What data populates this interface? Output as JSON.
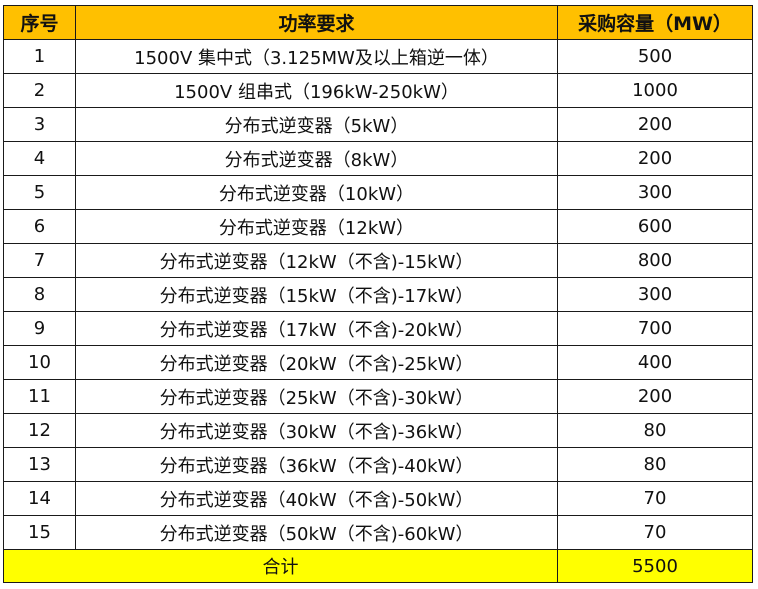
{
  "table": {
    "headers": [
      "序号",
      "功率要求",
      "采购容量（MW）"
    ],
    "rows": [
      {
        "no": "1",
        "requirement": "1500V 集中式（3.125MW及以上箱逆一体）",
        "capacity": "500"
      },
      {
        "no": "2",
        "requirement": "1500V 组串式（196kW-250kW）",
        "capacity": "1000"
      },
      {
        "no": "3",
        "requirement": "分布式逆变器（5kW）",
        "capacity": "200"
      },
      {
        "no": "4",
        "requirement": "分布式逆变器（8kW）",
        "capacity": "200"
      },
      {
        "no": "5",
        "requirement": "分布式逆变器（10kW）",
        "capacity": "300"
      },
      {
        "no": "6",
        "requirement": "分布式逆变器（12kW）",
        "capacity": "600"
      },
      {
        "no": "7",
        "requirement": "分布式逆变器（12kW（不含)-15kW）",
        "capacity": "800"
      },
      {
        "no": "8",
        "requirement": "分布式逆变器（15kW（不含)-17kW）",
        "capacity": "300"
      },
      {
        "no": "9",
        "requirement": "分布式逆变器（17kW（不含)-20kW）",
        "capacity": "700"
      },
      {
        "no": "10",
        "requirement": "分布式逆变器（20kW（不含)-25kW）",
        "capacity": "400"
      },
      {
        "no": "11",
        "requirement": "分布式逆变器（25kW（不含)-30kW）",
        "capacity": "200"
      },
      {
        "no": "12",
        "requirement": "分布式逆变器（30kW（不含)-36kW）",
        "capacity": "80"
      },
      {
        "no": "13",
        "requirement": "分布式逆变器（36kW（不含)-40kW）",
        "capacity": "80"
      },
      {
        "no": "14",
        "requirement": "分布式逆变器（40kW（不含)-50kW）",
        "capacity": "70"
      },
      {
        "no": "15",
        "requirement": "分布式逆变器（50kW（不含)-60kW）",
        "capacity": "70"
      }
    ],
    "total": {
      "label": "合计",
      "capacity": "5500"
    }
  },
  "colors": {
    "header_bg": "#ffc000",
    "total_bg": "#ffff00",
    "border": "#1a1a1a"
  }
}
